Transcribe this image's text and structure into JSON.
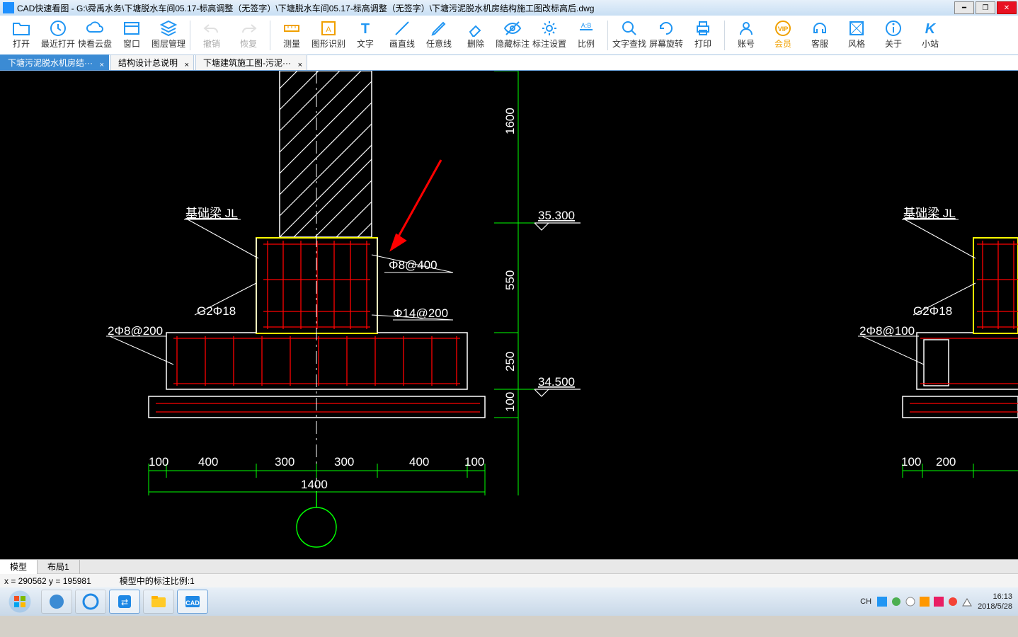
{
  "title": "CAD快速看图 - G:\\舜禹水务\\下塘脱水车间05.17-标高调整（无签字）\\下塘脱水车间05.17-标高调整（无签字）\\下塘污泥脱水机房结构施工图改标高后.dwg",
  "toolbar": [
    {
      "name": "open",
      "label": "打开",
      "color": "#2196f3",
      "type": "folder"
    },
    {
      "name": "recent",
      "label": "最近打开",
      "color": "#2196f3",
      "type": "clock"
    },
    {
      "name": "cloud",
      "label": "快看云盘",
      "color": "#2196f3",
      "type": "cloud"
    },
    {
      "name": "viewport",
      "label": "窗口",
      "color": "#2196f3",
      "type": "window"
    },
    {
      "name": "layers",
      "label": "图层管理",
      "color": "#2196f3",
      "type": "layers"
    },
    {
      "name": "sep"
    },
    {
      "name": "undo",
      "label": "撤销",
      "color": "#bbb",
      "type": "undo",
      "gray": true
    },
    {
      "name": "redo",
      "label": "恢复",
      "color": "#bbb",
      "type": "redo",
      "gray": true
    },
    {
      "name": "sep"
    },
    {
      "name": "measure",
      "label": "测量",
      "color": "#f0a000",
      "type": "ruler"
    },
    {
      "name": "recognize",
      "label": "图形识别",
      "color": "#f0a000",
      "type": "recognize"
    },
    {
      "name": "text",
      "label": "文字",
      "color": "#2196f3",
      "type": "text"
    },
    {
      "name": "line",
      "label": "画直线",
      "color": "#2196f3",
      "type": "line"
    },
    {
      "name": "freeline",
      "label": "任意线",
      "color": "#2196f3",
      "type": "pencil"
    },
    {
      "name": "delete",
      "label": "删除",
      "color": "#2196f3",
      "type": "eraser"
    },
    {
      "name": "hide",
      "label": "隐藏标注",
      "color": "#2196f3",
      "type": "eye"
    },
    {
      "name": "settings",
      "label": "标注设置",
      "color": "#2196f3",
      "type": "gear"
    },
    {
      "name": "scale",
      "label": "比例",
      "color": "#2196f3",
      "type": "scale"
    },
    {
      "name": "sep"
    },
    {
      "name": "findtext",
      "label": "文字查找",
      "color": "#2196f3",
      "type": "search"
    },
    {
      "name": "rotate",
      "label": "屏幕旋转",
      "color": "#2196f3",
      "type": "rotate"
    },
    {
      "name": "print",
      "label": "打印",
      "color": "#2196f3",
      "type": "printer"
    },
    {
      "name": "sep"
    },
    {
      "name": "account",
      "label": "账号",
      "color": "#2196f3",
      "type": "user"
    },
    {
      "name": "vip",
      "label": "会员",
      "color": "#f0a000",
      "type": "vip",
      "vip": true
    },
    {
      "name": "support",
      "label": "客服",
      "color": "#2196f3",
      "type": "headset"
    },
    {
      "name": "style",
      "label": "风格",
      "color": "#2196f3",
      "type": "style"
    },
    {
      "name": "about",
      "label": "关于",
      "color": "#2196f3",
      "type": "info"
    },
    {
      "name": "site",
      "label": "小站",
      "color": "#2196f3",
      "type": "k"
    }
  ],
  "tabs": [
    {
      "label": "下塘污泥脱水机房结···",
      "active": true
    },
    {
      "label": "结构设计总说明",
      "active": false
    },
    {
      "label": "下塘建筑施工图-污泥···",
      "active": false
    }
  ],
  "drawing": {
    "colors": {
      "outline": "#ffffff",
      "rebar": "#ff0000",
      "dim": "#00ff00",
      "highlight": "#ffff00",
      "arrow": "#ff0000",
      "text": "#ffffff"
    },
    "labels_left": {
      "beam_title": "基础梁   JL",
      "g2": "G2Φ18",
      "left_rebar": "2Φ8@200",
      "phi8": "Φ8@400",
      "phi14": "Φ14@200",
      "lvl_top": "35.300",
      "lvl_bot": "34.500",
      "vd_1600": "1600",
      "vd_550": "550",
      "vd_250": "250",
      "vd_100": "100",
      "hd": [
        "100",
        "400",
        "300",
        "300",
        "400",
        "100"
      ],
      "hd_total": "1400"
    },
    "labels_right": {
      "beam_title": "基础梁   JL",
      "g2": "G2Φ18",
      "right_rebar": "2Φ8@100",
      "hd": [
        "100",
        "200"
      ]
    }
  },
  "bottom_tabs": {
    "model": "模型",
    "layout": "布局1"
  },
  "status": {
    "coords": "x = 290562  y = 195981",
    "scale": "模型中的标注比例:1"
  },
  "taskbar": {
    "tray_text": "CH",
    "time": "16:13",
    "date": "2018/5/28"
  }
}
